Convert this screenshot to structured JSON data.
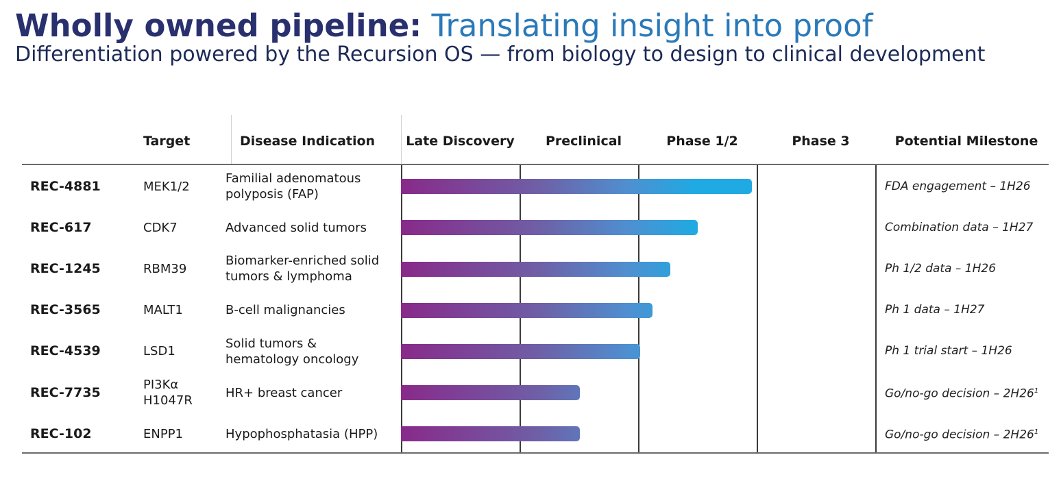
{
  "header": {
    "title_bold": "Wholly owned pipeline:",
    "title_light": " Translating insight into proof",
    "subtitle": "Differentiation powered by the Recursion OS — from biology to design to clinical development"
  },
  "columns": {
    "target": "Target",
    "indication": "Disease Indication",
    "late_discovery": "Late Discovery",
    "preclinical": "Preclinical",
    "phase12": "Phase 1/2",
    "phase3": "Phase 3",
    "milestone": "Potential Milestone"
  },
  "colors": {
    "title_dark": "#29306e",
    "title_light": "#2a79b9",
    "bar_start": "#882a8a",
    "bar_end": "#1faae3"
  },
  "chart_data": {
    "type": "bar",
    "orientation": "horizontal",
    "stage_axis": [
      "Late Discovery",
      "Preclinical",
      "Phase 1/2",
      "Phase 3"
    ],
    "value_units": "stage progress (0 = start of Late Discovery, 4 = end of Phase 3)",
    "xlim": [
      0,
      4
    ],
    "rows": [
      {
        "program": "REC-4881",
        "target": "MEK1/2",
        "indication_lines": [
          "Familial adenomatous",
          "polyposis (FAP)"
        ],
        "progress": 2.96,
        "milestone": "FDA engagement – 1H26",
        "footnote": ""
      },
      {
        "program": "REC-617",
        "target": "CDK7",
        "indication_lines": [
          "Advanced solid tumors"
        ],
        "progress": 2.5,
        "milestone": "Combination data – 1H27",
        "footnote": ""
      },
      {
        "program": "REC-1245",
        "target": "RBM39",
        "indication_lines": [
          "Biomarker-enriched solid",
          "tumors & lymphoma"
        ],
        "progress": 2.27,
        "milestone": "Ph 1/2 data – 1H26",
        "footnote": ""
      },
      {
        "program": "REC-3565",
        "target": "MALT1",
        "indication_lines": [
          "B-cell malignancies"
        ],
        "progress": 2.12,
        "milestone": "Ph 1 data – 1H27",
        "footnote": ""
      },
      {
        "program": "REC-4539",
        "target": "LSD1",
        "indication_lines": [
          "Solid tumors &",
          "hematology oncology"
        ],
        "progress": 2.02,
        "milestone": "Ph 1 trial start – 1H26",
        "footnote": ""
      },
      {
        "program": "REC-7735",
        "target": "PI3Kα H1047R",
        "target_lines": [
          "PI3Kα",
          "H1047R"
        ],
        "indication_lines": [
          "HR+ breast cancer"
        ],
        "progress": 1.51,
        "milestone": "Go/no-go decision – 2H26",
        "footnote": "1"
      },
      {
        "program": "REC-102",
        "target": "ENPP1",
        "indication_lines": [
          "Hypophosphatasia (HPP)"
        ],
        "progress": 1.51,
        "milestone": "Go/no-go decision – 2H26",
        "footnote": "1"
      }
    ]
  }
}
